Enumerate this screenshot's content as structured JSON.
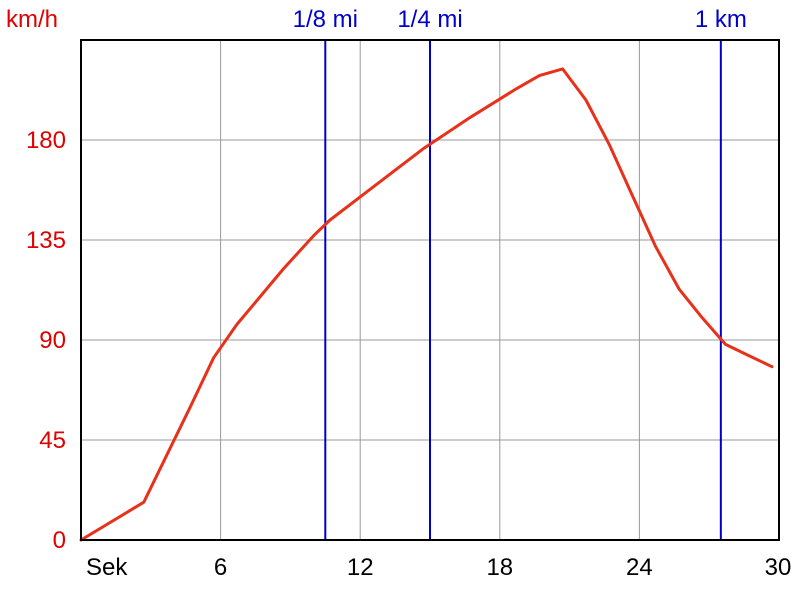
{
  "chart_data": {
    "type": "line",
    "ylabel": "km/h",
    "xlabel": "Sek",
    "xlim": [
      0,
      30
    ],
    "ylim": [
      0,
      225
    ],
    "x_ticks": [
      6,
      12,
      18,
      24,
      30
    ],
    "y_ticks": [
      0,
      45,
      90,
      135,
      180
    ],
    "grid": true,
    "colors": {
      "series": "#e8311a",
      "y_axis_text": "#e00000",
      "markers": "#0000cc",
      "grid": "#999999",
      "axes": "#000000"
    },
    "series": [
      {
        "x": [
          0,
          2.7,
          4.7,
          5.7,
          6.7,
          8.7,
          10,
          10.7,
          12.7,
          14.7,
          16.7,
          18.7,
          19.7,
          20.7,
          21.7,
          22.7,
          23.7,
          24.7,
          25.7,
          26.7,
          27.7,
          28.7,
          29.7
        ],
        "y": [
          0,
          17,
          60,
          82,
          97,
          122,
          137,
          144,
          160,
          176,
          190,
          203,
          209,
          212,
          198,
          178,
          155,
          132,
          113,
          100,
          88,
          83,
          78
        ]
      }
    ],
    "markers": [
      {
        "label": "1/8 mi",
        "x": 10.5
      },
      {
        "label": "1/4 mi",
        "x": 15
      },
      {
        "label": "1 km",
        "x": 27.5
      }
    ]
  }
}
